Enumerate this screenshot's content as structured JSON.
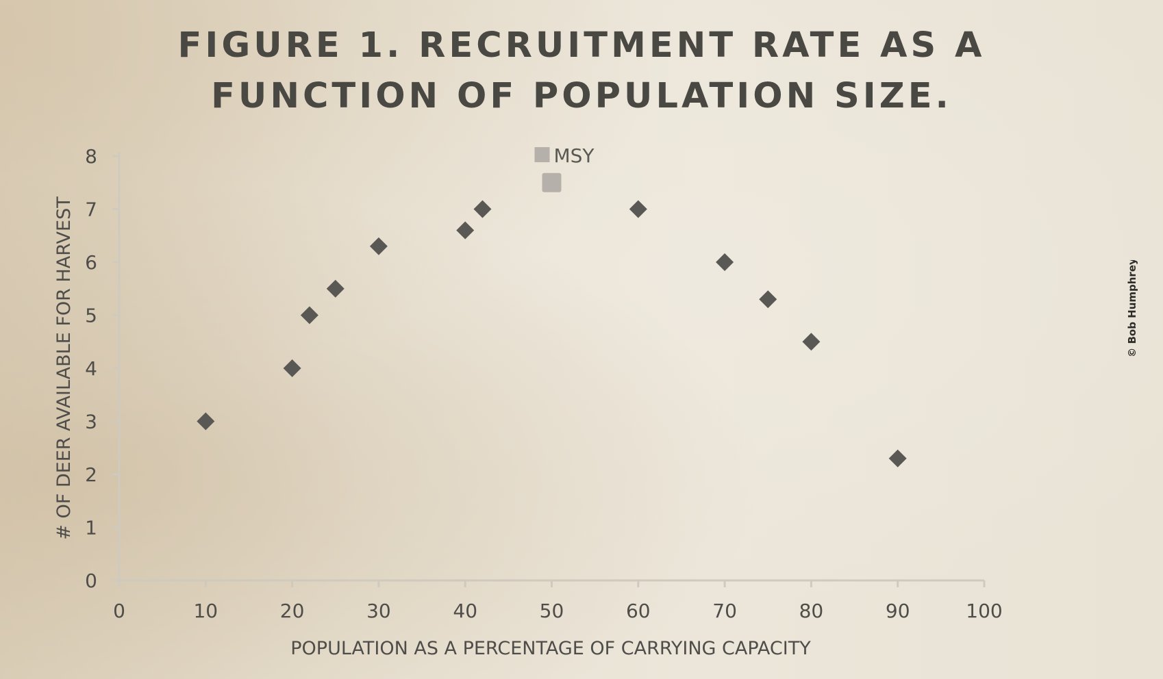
{
  "chart_data": {
    "type": "scatter",
    "title_lines": [
      "FIGURE 1. RECRUITMENT RATE AS A",
      "FUNCTION OF POPULATION SIZE."
    ],
    "xlabel": "POPULATION AS A PERCENTAGE OF CARRYING CAPACITY",
    "ylabel": "# OF DEER AVAILABLE FOR HARVEST",
    "xlim": [
      0,
      100
    ],
    "ylim": [
      0,
      8
    ],
    "xticks": [
      "0",
      "10",
      "20",
      "30",
      "40",
      "50",
      "60",
      "70",
      "80",
      "90",
      "100"
    ],
    "yticks": [
      "0",
      "1",
      "2",
      "3",
      "4",
      "5",
      "6",
      "7",
      "8"
    ],
    "grid": false,
    "legend_position": "top-center",
    "series": [
      {
        "marker": "diamond",
        "color": "#5a5854",
        "points": [
          {
            "x": 10,
            "y": 3.0
          },
          {
            "x": 20,
            "y": 4.0
          },
          {
            "x": 22,
            "y": 5.0
          },
          {
            "x": 25,
            "y": 5.5
          },
          {
            "x": 30,
            "y": 6.3
          },
          {
            "x": 40,
            "y": 6.6
          },
          {
            "x": 42,
            "y": 7.0
          },
          {
            "x": 60,
            "y": 7.0
          },
          {
            "x": 70,
            "y": 6.0
          },
          {
            "x": 75,
            "y": 5.3
          },
          {
            "x": 80,
            "y": 4.5
          },
          {
            "x": 90,
            "y": 2.3
          }
        ]
      },
      {
        "name": "MSY",
        "marker": "square",
        "color": "#b5b1aa",
        "points": [
          {
            "x": 50,
            "y": 7.5
          }
        ]
      }
    ]
  },
  "copyright": "© Bob Humphrey"
}
